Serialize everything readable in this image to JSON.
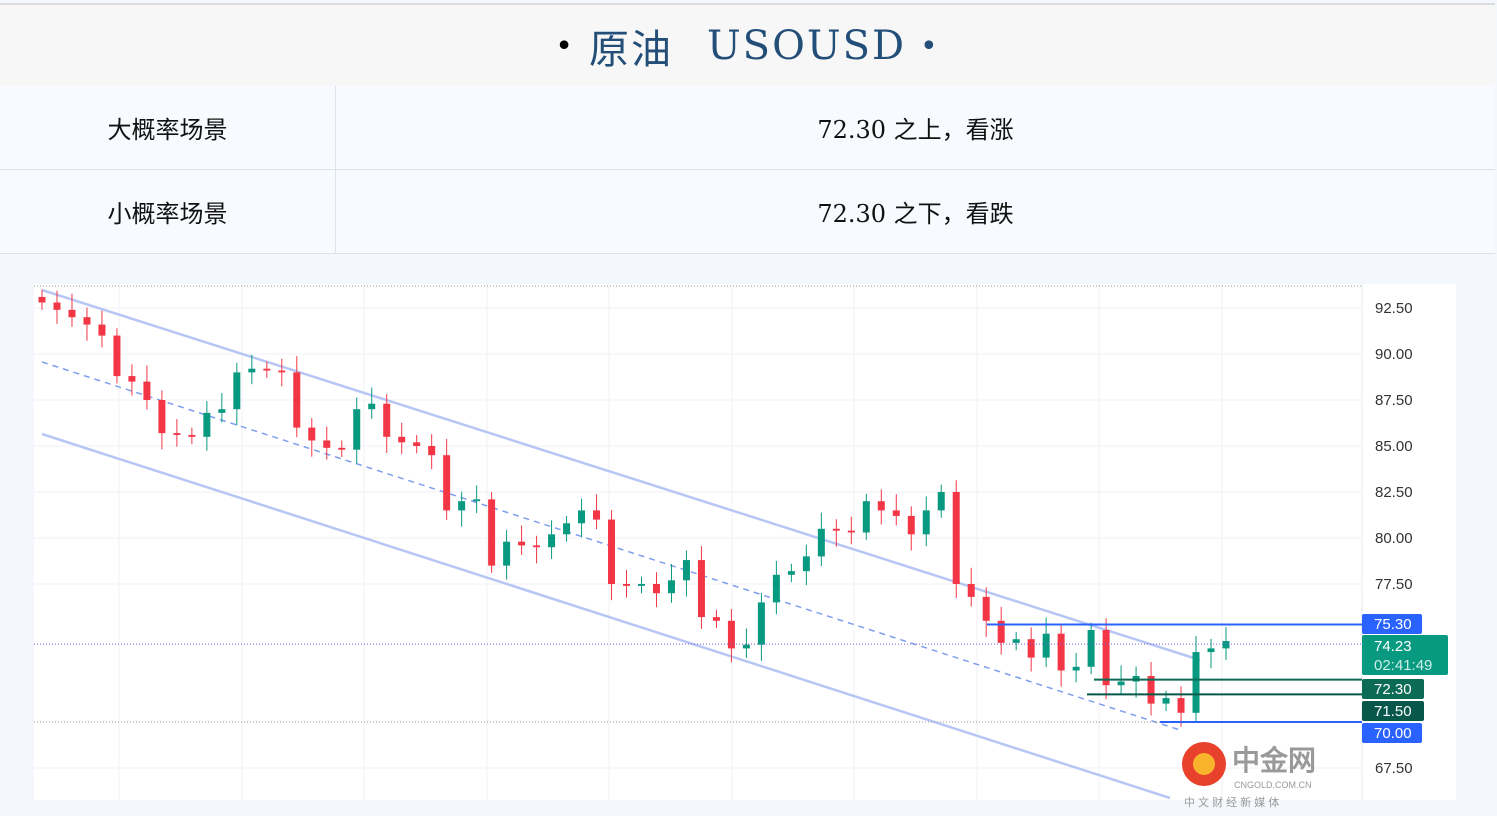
{
  "title": {
    "name": "原油",
    "symbol": "USOUSD",
    "bullet": "•"
  },
  "scenarios": [
    {
      "label": "大概率场景",
      "text": "72.30 之上，看涨"
    },
    {
      "label": "小概率场景",
      "text": "72.30 之下，看跌"
    }
  ],
  "chart_data": {
    "type": "candlestick",
    "ylim": [
      66.5,
      93.5
    ],
    "y_ticks": [
      "92.50",
      "90.00",
      "87.50",
      "85.00",
      "82.50",
      "80.00",
      "77.50",
      "67.50"
    ],
    "closes": [
      92.8,
      92.4,
      92,
      91.6,
      91,
      88.8,
      88.5,
      87.5,
      85.7,
      85.6,
      85.5,
      86.8,
      87,
      89,
      89.2,
      89.1,
      89,
      86,
      85.3,
      84.9,
      84.8,
      87,
      87.3,
      85.5,
      85.2,
      85,
      84.5,
      81.5,
      82,
      82.1,
      78.5,
      79.8,
      79.6,
      79.5,
      80.2,
      80.8,
      81.5,
      81,
      77.5,
      77.4,
      77.5,
      77,
      77.7,
      78.8,
      75.7,
      75.5,
      74,
      74.2,
      76.5,
      78,
      78.2,
      79,
      80.5,
      80.4,
      80.3,
      82,
      81.5,
      81.2,
      80.2,
      81.5,
      82.5,
      77.5,
      76.8,
      75.5,
      74.3,
      74.5,
      73.5,
      74.8,
      72.8,
      73,
      75,
      72,
      72.2,
      72.5,
      71,
      71.3,
      70.5,
      73.8,
      74,
      74.4
    ],
    "levels": [
      {
        "value": 75.3,
        "label": "75.30",
        "color": "#2962ff"
      },
      {
        "value": 72.3,
        "label": "72.30",
        "color": "#0b6b55"
      },
      {
        "value": 71.5,
        "label": "71.50",
        "color": "#07584a"
      },
      {
        "value": 70.0,
        "label": "70.00",
        "color": "#2962ff"
      }
    ],
    "last_price": {
      "value": 74.23,
      "label": "74.23",
      "countdown": "02:41:49",
      "color": "#089981"
    },
    "up_color": "#089981",
    "down_color": "#f23645",
    "channel_color": "#b7c6f5"
  },
  "watermark": {
    "brand": "中金网",
    "domain": "CNGOLD.COM.CN",
    "tagline": "中 文 财 经 新 媒 体"
  }
}
